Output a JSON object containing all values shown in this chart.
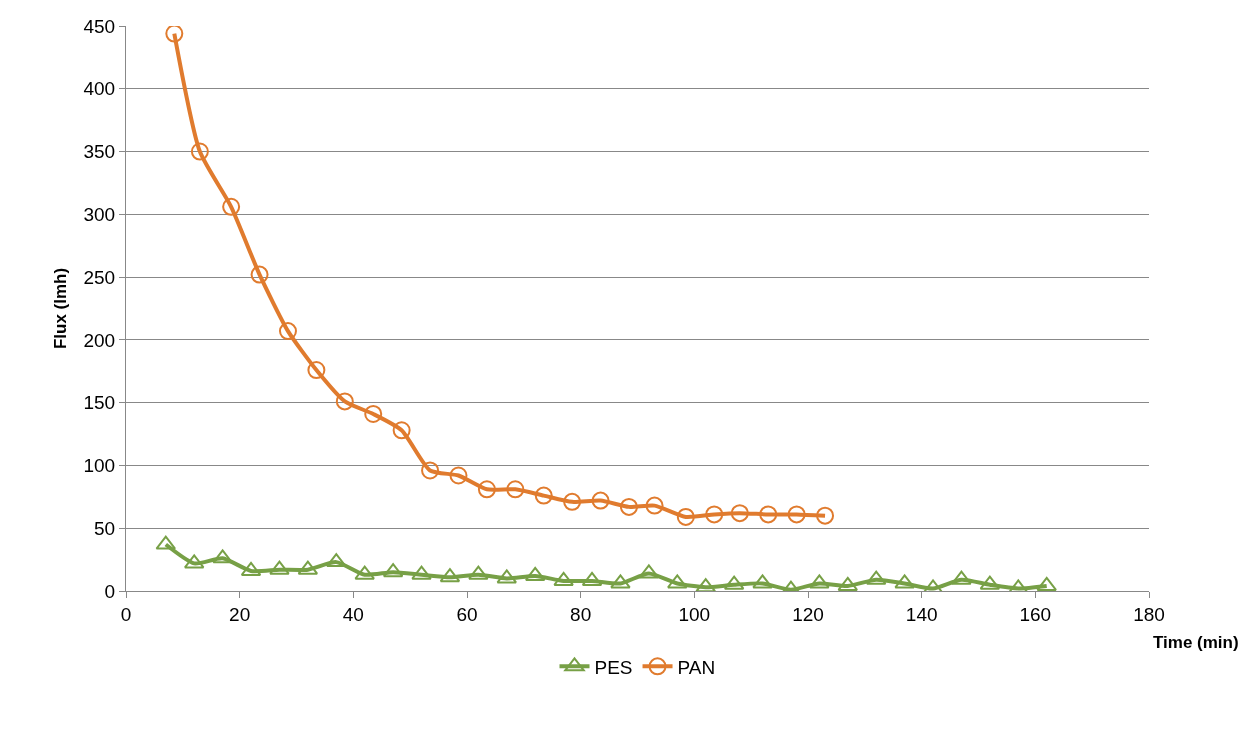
{
  "chart_data": {
    "type": "line",
    "xlabel": "Time (min)",
    "ylabel": "Flux (lmh)",
    "xlim": [
      0,
      180
    ],
    "xticks": [
      0,
      20,
      40,
      60,
      80,
      100,
      120,
      140,
      160,
      180
    ],
    "ylim": [
      0,
      450
    ],
    "yticks": [
      0,
      50,
      100,
      150,
      200,
      250,
      300,
      350,
      400,
      450
    ],
    "grid": "y",
    "legend": "bottom",
    "series": [
      {
        "name": "PES",
        "color": "#77a046",
        "marker": "triangle",
        "x": [
          7,
          12,
          17,
          22,
          27,
          32,
          37,
          42,
          47,
          52,
          57,
          62,
          67,
          72,
          77,
          82,
          87,
          92,
          97,
          102,
          107,
          112,
          117,
          122,
          127,
          132,
          137,
          142,
          147,
          152,
          157,
          162
        ],
        "values": [
          37,
          22,
          26,
          16,
          17,
          17,
          23,
          13,
          15,
          13,
          11,
          13,
          10,
          12,
          8,
          8,
          6,
          14,
          6,
          3,
          5,
          6,
          1,
          6,
          4,
          9,
          6,
          2,
          9,
          5,
          2,
          4
        ]
      },
      {
        "name": "PAN",
        "color": "#e07b2e",
        "marker": "circle",
        "x": [
          8.5,
          13,
          18.5,
          23.5,
          28.5,
          33.5,
          38.5,
          43.5,
          48.5,
          53.5,
          58.5,
          63.5,
          68.5,
          73.5,
          78.5,
          83.5,
          88.5,
          93,
          98.5,
          103.5,
          108,
          113,
          118,
          123
        ],
        "values": [
          444,
          350,
          306,
          252,
          207,
          176,
          151,
          141,
          128,
          96,
          92,
          81,
          81,
          76,
          71,
          72,
          67,
          68,
          59,
          61,
          62,
          61,
          61,
          60
        ]
      }
    ]
  }
}
